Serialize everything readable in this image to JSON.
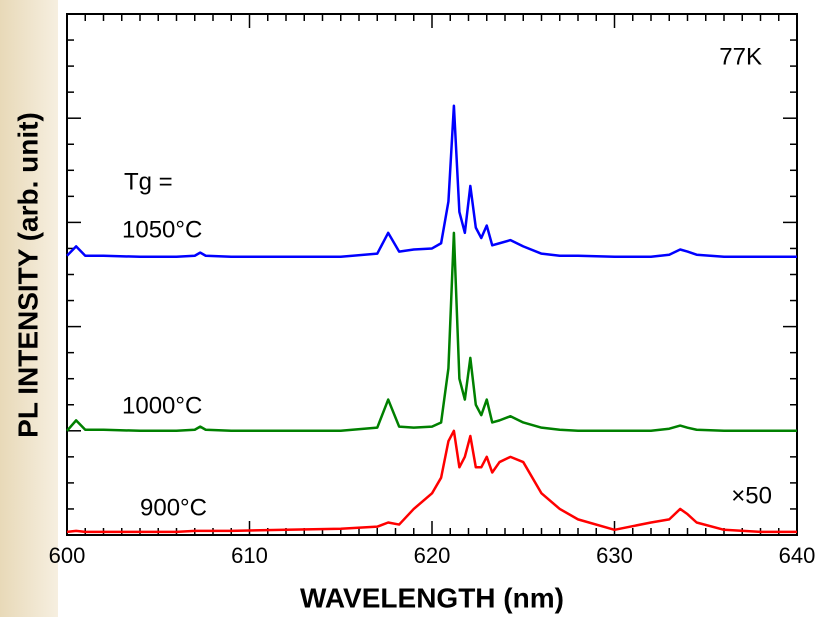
{
  "chart_data": {
    "type": "line",
    "xlabel": "WAVELENGTH (nm)",
    "ylabel": "PL INTENSITY (arb. unit)",
    "annotations": [
      "77K",
      "Tg =",
      "1050°C",
      "1000°C",
      "900°C",
      "×50"
    ],
    "xlim": [
      600,
      640
    ],
    "xticks": [
      600,
      610,
      620,
      630,
      640
    ],
    "xminorticks": [
      601,
      602,
      603,
      604,
      605,
      606,
      607,
      608,
      609,
      611,
      612,
      613,
      614,
      615,
      616,
      617,
      618,
      619,
      621,
      622,
      623,
      624,
      625,
      626,
      627,
      628,
      629,
      631,
      632,
      633,
      634,
      635,
      636,
      637,
      638,
      639
    ],
    "ylim": [
      0,
      5
    ],
    "yticks": [
      0,
      1,
      2,
      3,
      4,
      5
    ],
    "yminorticks": [
      0.25,
      0.5,
      0.75,
      1.25,
      1.5,
      1.75,
      2.25,
      2.5,
      2.75,
      3.25,
      3.5,
      3.75,
      4.25,
      4.5,
      4.75
    ],
    "x": [
      600,
      600.5,
      601,
      602,
      604,
      606,
      607,
      607.3,
      607.6,
      609,
      612,
      615,
      617,
      617.6,
      618.2,
      619,
      620,
      620.5,
      620.9,
      621.2,
      621.5,
      621.8,
      622.1,
      622.4,
      622.7,
      623,
      623.3,
      623.7,
      624.3,
      625,
      626,
      627,
      628,
      630,
      632,
      633,
      633.6,
      634,
      634.5,
      636,
      638,
      640
    ],
    "series": [
      {
        "name": "1050°C",
        "color": "#0000ff",
        "values": [
          2.68,
          2.77,
          2.68,
          2.68,
          2.67,
          2.67,
          2.68,
          2.71,
          2.68,
          2.67,
          2.67,
          2.67,
          2.7,
          2.9,
          2.72,
          2.74,
          2.75,
          2.8,
          3.2,
          4.12,
          3.1,
          2.9,
          3.35,
          2.95,
          2.85,
          2.97,
          2.78,
          2.8,
          2.83,
          2.77,
          2.7,
          2.68,
          2.68,
          2.67,
          2.67,
          2.69,
          2.74,
          2.72,
          2.69,
          2.67,
          2.67,
          2.67
        ]
      },
      {
        "name": "1000°C",
        "color": "#008000",
        "values": [
          1.0,
          1.1,
          1.01,
          1.01,
          1.0,
          1.0,
          1.01,
          1.04,
          1.01,
          1.0,
          1.0,
          1.0,
          1.03,
          1.3,
          1.04,
          1.03,
          1.04,
          1.08,
          1.6,
          2.9,
          1.5,
          1.3,
          1.7,
          1.25,
          1.15,
          1.3,
          1.08,
          1.1,
          1.14,
          1.08,
          1.03,
          1.01,
          1.0,
          1.0,
          1.0,
          1.02,
          1.05,
          1.03,
          1.01,
          1.0,
          1.0,
          1.0
        ]
      },
      {
        "name": "900°C",
        "color": "#ff0000",
        "values": [
          0.03,
          0.04,
          0.03,
          0.03,
          0.03,
          0.03,
          0.04,
          0.04,
          0.04,
          0.04,
          0.05,
          0.06,
          0.08,
          0.12,
          0.1,
          0.25,
          0.4,
          0.55,
          0.9,
          1.0,
          0.65,
          0.75,
          0.95,
          0.65,
          0.65,
          0.75,
          0.6,
          0.7,
          0.75,
          0.7,
          0.4,
          0.25,
          0.15,
          0.05,
          0.12,
          0.15,
          0.25,
          0.2,
          0.12,
          0.05,
          0.03,
          0.03
        ]
      }
    ]
  }
}
